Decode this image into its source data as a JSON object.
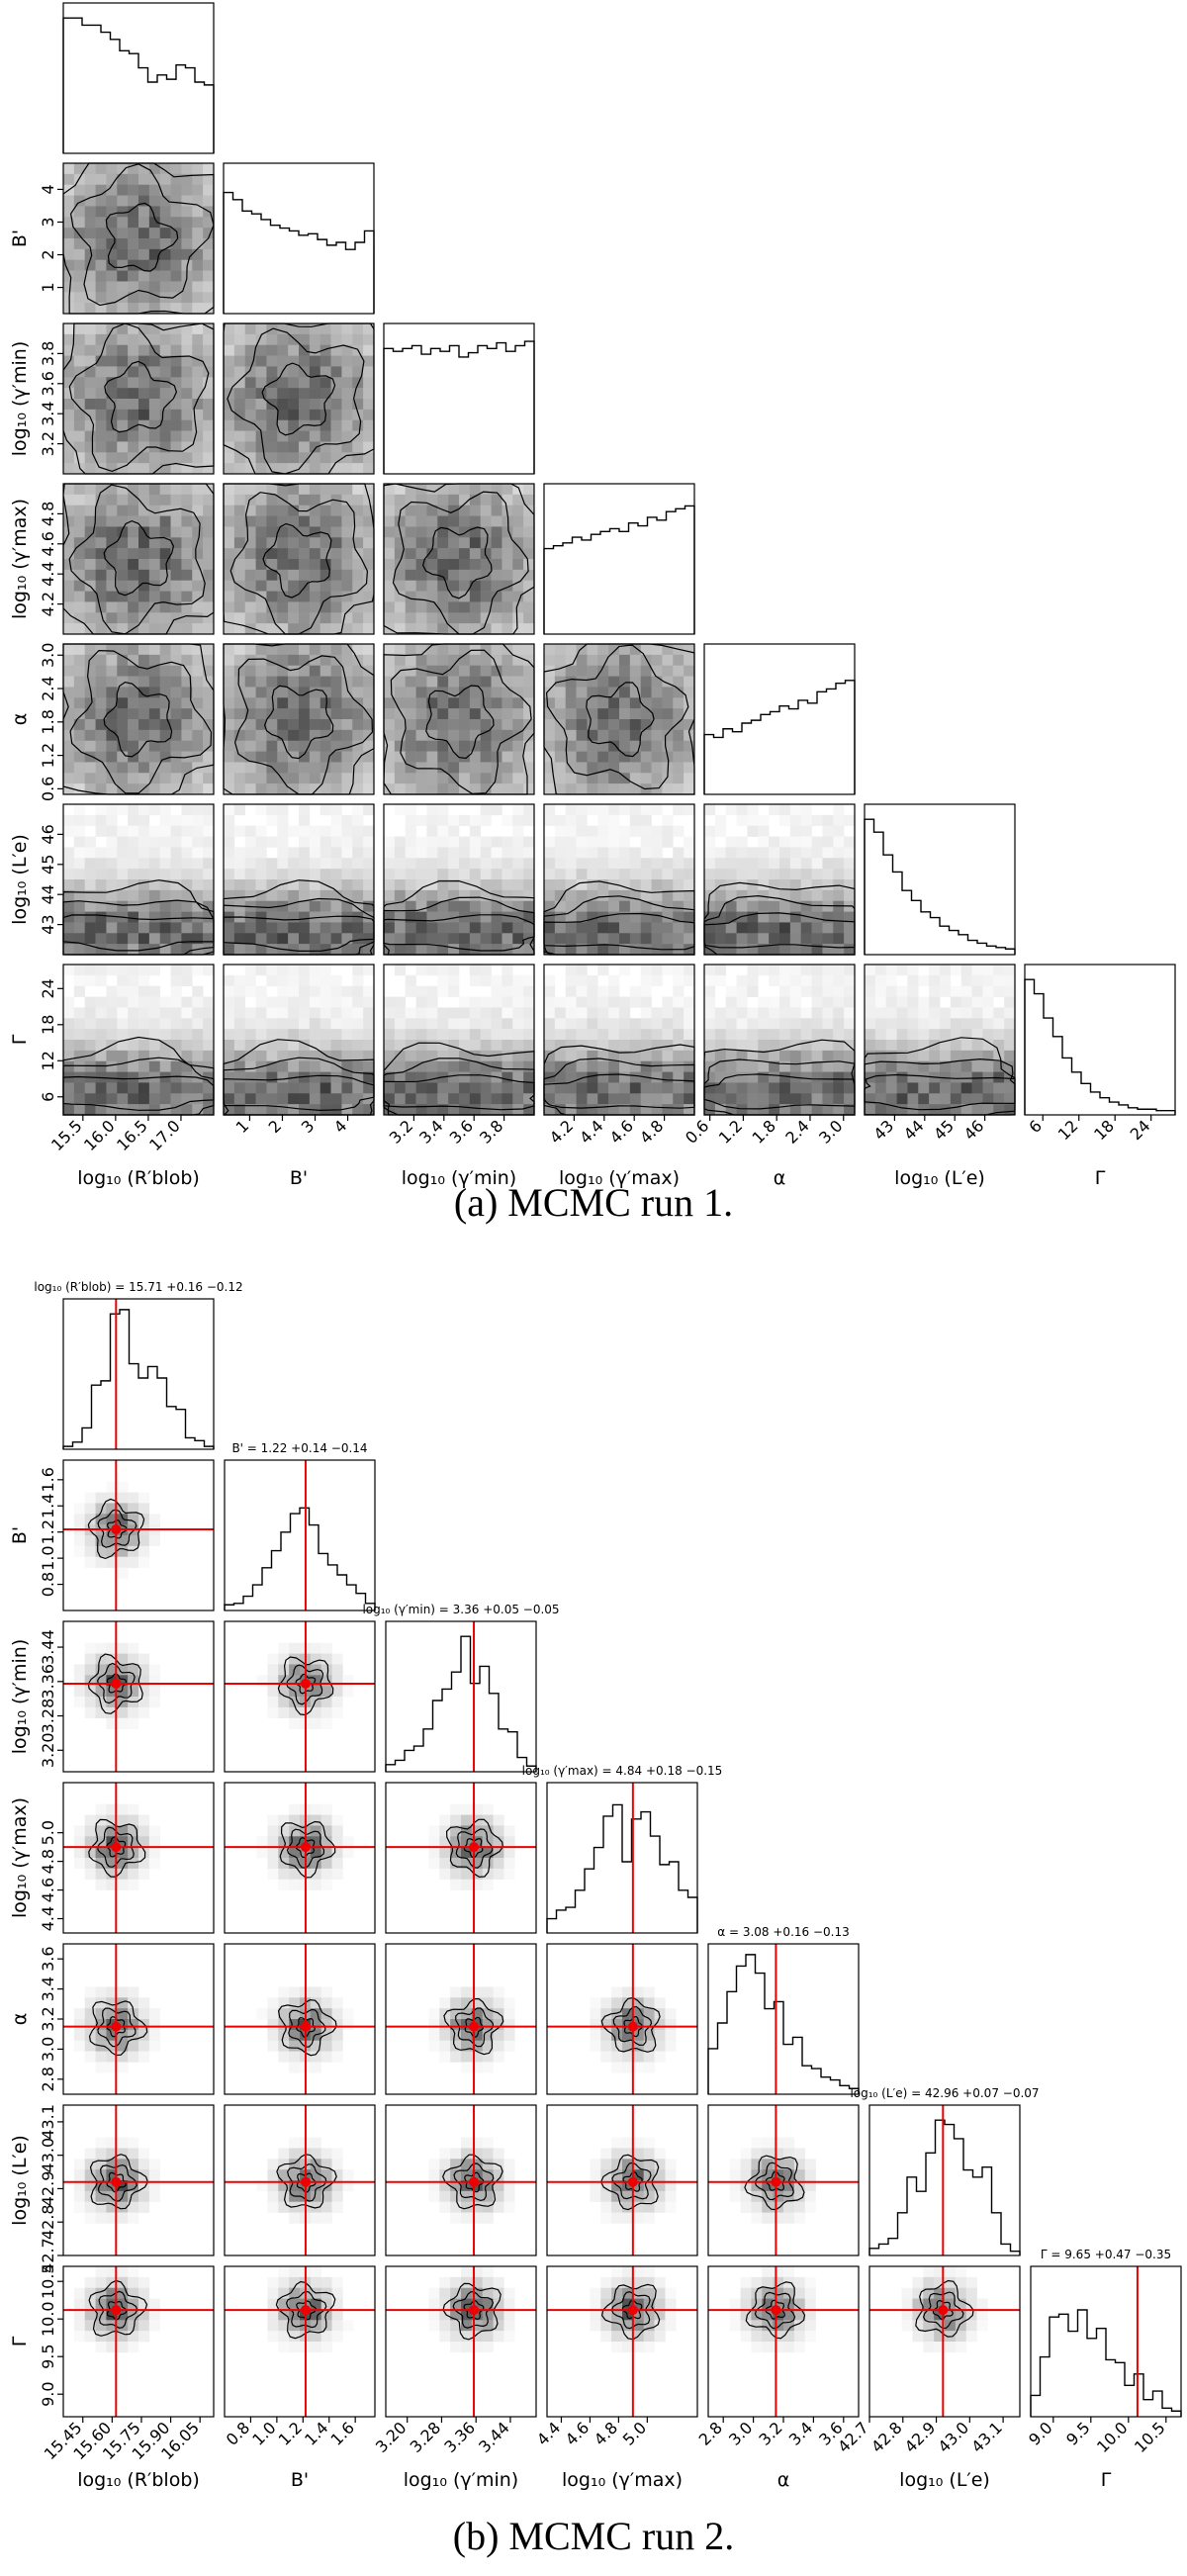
{
  "figure": {
    "caption_a": "(a) MCMC run 1.",
    "caption_b": "(b) MCMC run 2."
  },
  "chart_data": [
    {
      "type": "corner",
      "parameters": [
        {
          "label": "log₁₀ (R′blob)",
          "range": [
            15.2,
            17.5
          ],
          "ticks": [
            "15.5",
            "16.0",
            "16.5",
            "17.0"
          ],
          "tick_values": [
            15.5,
            16.0,
            16.5,
            17.0
          ]
        },
        {
          "label": "B'",
          "range": [
            0.2,
            4.8
          ],
          "ticks": [
            "1",
            "2",
            "3",
            "4"
          ],
          "tick_values": [
            1,
            2,
            3,
            4
          ]
        },
        {
          "label": "log₁₀ (γ′min)",
          "range": [
            3.0,
            4.0
          ],
          "ticks": [
            "3.2",
            "3.4",
            "3.6",
            "3.8"
          ],
          "tick_values": [
            3.2,
            3.4,
            3.6,
            3.8
          ]
        },
        {
          "label": "log₁₀ (γ′max)",
          "range": [
            4.0,
            5.0
          ],
          "ticks": [
            "4.2",
            "4.4",
            "4.6",
            "4.8"
          ],
          "tick_values": [
            4.2,
            4.4,
            4.6,
            4.8
          ]
        },
        {
          "label": "α",
          "range": [
            0.5,
            3.2
          ],
          "ticks": [
            "0.6",
            "1.2",
            "1.8",
            "2.4",
            "3.0"
          ],
          "tick_values": [
            0.6,
            1.2,
            1.8,
            2.4,
            3.0
          ]
        },
        {
          "label": "log₁₀ (L′e)",
          "range": [
            42.0,
            47.0
          ],
          "ticks": [
            "43",
            "44",
            "45",
            "46"
          ],
          "tick_values": [
            43,
            44,
            45,
            46
          ]
        },
        {
          "label": "Γ",
          "range": [
            3,
            28
          ],
          "ticks": [
            "6",
            "12",
            "18",
            "24"
          ],
          "tick_values": [
            6,
            12,
            18,
            24
          ]
        }
      ],
      "histograms": [
        [
          0.95,
          0.95,
          0.9,
          0.9,
          0.85,
          0.8,
          0.72,
          0.7,
          0.6,
          0.5,
          0.55,
          0.52,
          0.62,
          0.6,
          0.5,
          0.48
        ],
        [
          0.85,
          0.8,
          0.72,
          0.7,
          0.66,
          0.62,
          0.6,
          0.58,
          0.55,
          0.56,
          0.52,
          0.48,
          0.5,
          0.45,
          0.5,
          0.58
        ],
        [
          0.88,
          0.86,
          0.88,
          0.9,
          0.84,
          0.88,
          0.86,
          0.9,
          0.82,
          0.85,
          0.9,
          0.88,
          0.92,
          0.86,
          0.9,
          0.93
        ],
        [
          0.6,
          0.62,
          0.64,
          0.68,
          0.66,
          0.7,
          0.72,
          0.74,
          0.72,
          0.78,
          0.76,
          0.82,
          0.8,
          0.86,
          0.88,
          0.9
        ],
        [
          0.42,
          0.4,
          0.46,
          0.44,
          0.5,
          0.52,
          0.56,
          0.58,
          0.62,
          0.6,
          0.66,
          0.64,
          0.72,
          0.74,
          0.78,
          0.8
        ],
        [
          0.95,
          0.86,
          0.7,
          0.58,
          0.45,
          0.38,
          0.3,
          0.26,
          0.2,
          0.17,
          0.14,
          0.1,
          0.08,
          0.06,
          0.05,
          0.04
        ],
        [
          0.95,
          0.85,
          0.68,
          0.55,
          0.4,
          0.3,
          0.22,
          0.16,
          0.12,
          0.09,
          0.07,
          0.05,
          0.04,
          0.04,
          0.03,
          0.03
        ]
      ]
    },
    {
      "type": "corner",
      "parameters": [
        {
          "label": "log₁₀ (R′blob)",
          "range": [
            15.35,
            16.12
          ],
          "ticks": [
            "15.45",
            "15.60",
            "15.75",
            "15.90",
            "16.05"
          ],
          "tick_values": [
            15.45,
            15.6,
            15.75,
            15.9,
            16.05
          ],
          "best": 15.71,
          "plus": 0.16,
          "minus": 0.12,
          "marker": 15.62
        },
        {
          "label": "B'",
          "range": [
            0.6,
            1.75
          ],
          "ticks": [
            "0.8",
            "1.0",
            "1.2",
            "1.4",
            "1.6"
          ],
          "tick_values": [
            0.8,
            1.0,
            1.2,
            1.4,
            1.6
          ],
          "best": 1.22,
          "plus": 0.14,
          "minus": 0.14,
          "marker": 1.22
        },
        {
          "label": "log₁₀ (γ′min)",
          "range": [
            3.15,
            3.5
          ],
          "ticks": [
            "3.20",
            "3.28",
            "3.36",
            "3.44"
          ],
          "tick_values": [
            3.2,
            3.28,
            3.36,
            3.44
          ],
          "best": 3.36,
          "plus": 0.05,
          "minus": 0.05,
          "marker": 3.355
        },
        {
          "label": "log₁₀ (γ′max)",
          "range": [
            4.3,
            5.35
          ],
          "ticks": [
            "4.4",
            "4.6",
            "4.8",
            "5.0"
          ],
          "tick_values": [
            4.4,
            4.6,
            4.8,
            5.0
          ],
          "best": 4.84,
          "plus": 0.18,
          "minus": 0.15,
          "marker": 4.9
        },
        {
          "label": "α",
          "range": [
            2.7,
            3.7
          ],
          "ticks": [
            "2.8",
            "3.0",
            "3.2",
            "3.4",
            "3.6"
          ],
          "tick_values": [
            2.8,
            3.0,
            3.2,
            3.4,
            3.6
          ],
          "best": 3.08,
          "plus": 0.16,
          "minus": 0.13,
          "marker": 3.15
        },
        {
          "label": "log₁₀ (L′e)",
          "range": [
            42.7,
            43.15
          ],
          "ticks": [
            "42.7",
            "42.8",
            "42.9",
            "43.0",
            "43.1"
          ],
          "tick_values": [
            42.7,
            42.8,
            42.9,
            43.0,
            43.1
          ],
          "best": 42.96,
          "plus": 0.07,
          "minus": 0.07,
          "marker": 42.92
        },
        {
          "label": "Γ",
          "range": [
            8.7,
            10.7
          ],
          "ticks": [
            "9.0",
            "9.5",
            "10.0",
            "10.5"
          ],
          "tick_values": [
            9.0,
            9.5,
            10.0,
            10.5
          ],
          "best": 9.65,
          "plus": 0.47,
          "minus": 0.35,
          "marker": 10.12
        }
      ],
      "histograms": [
        [
          0.02,
          0.05,
          0.15,
          0.45,
          0.48,
          0.95,
          0.98,
          0.6,
          0.5,
          0.58,
          0.5,
          0.3,
          0.28,
          0.08,
          0.06,
          0.02
        ],
        [
          0.04,
          0.05,
          0.1,
          0.18,
          0.3,
          0.42,
          0.55,
          0.68,
          0.72,
          0.6,
          0.4,
          0.32,
          0.25,
          0.18,
          0.12,
          0.05
        ],
        [
          0.05,
          0.08,
          0.15,
          0.18,
          0.3,
          0.5,
          0.58,
          0.7,
          0.95,
          0.62,
          0.74,
          0.55,
          0.3,
          0.28,
          0.1,
          0.04
        ],
        [
          0.1,
          0.16,
          0.18,
          0.3,
          0.45,
          0.6,
          0.82,
          0.9,
          0.5,
          0.8,
          0.85,
          0.68,
          0.48,
          0.5,
          0.3,
          0.25
        ],
        [
          0.32,
          0.5,
          0.72,
          0.9,
          0.98,
          0.85,
          0.6,
          0.65,
          0.35,
          0.4,
          0.2,
          0.18,
          0.12,
          0.1,
          0.06,
          0.04
        ],
        [
          0.05,
          0.08,
          0.12,
          0.3,
          0.55,
          0.45,
          0.72,
          0.95,
          0.92,
          0.82,
          0.6,
          0.55,
          0.62,
          0.3,
          0.08,
          0.03
        ],
        [
          0.15,
          0.42,
          0.7,
          0.72,
          0.6,
          0.75,
          0.55,
          0.62,
          0.4,
          0.38,
          0.22,
          0.3,
          0.12,
          0.18,
          0.06,
          0.04
        ]
      ]
    }
  ]
}
